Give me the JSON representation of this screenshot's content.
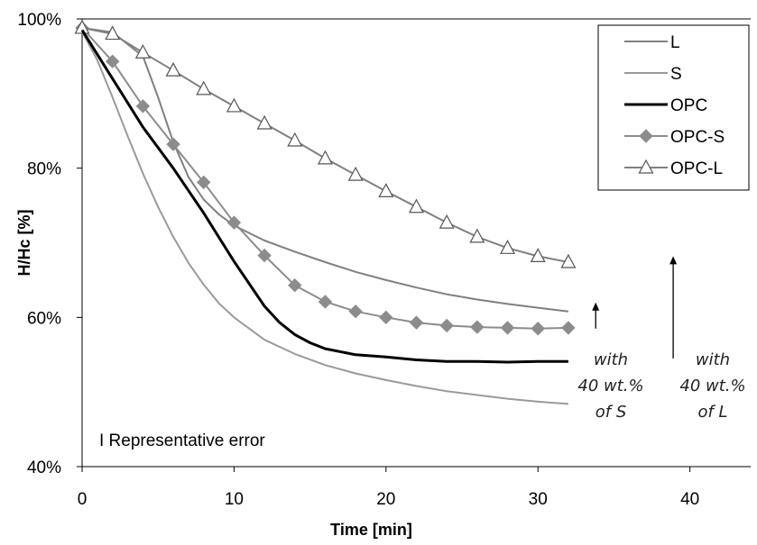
{
  "chart_data": {
    "type": "line",
    "title": "",
    "xlabel": "Time [min]",
    "ylabel": "H/Hc [%]",
    "xlim": [
      0,
      44
    ],
    "ylim": [
      40,
      100
    ],
    "xticks": [
      0,
      10,
      20,
      30,
      40
    ],
    "xtick_labels": [
      "0",
      "10",
      "20",
      "30",
      "40"
    ],
    "yticks": [
      40,
      60,
      80,
      100
    ],
    "ytick_labels": [
      "40%",
      "60%",
      "80%",
      "100%"
    ],
    "grid": false,
    "legend_position": "top-right",
    "series": [
      {
        "name": "L",
        "color": "#808080",
        "marker": "none",
        "x": [
          0,
          2,
          4,
          5,
          6,
          7,
          8,
          9,
          10,
          12,
          14,
          16,
          18,
          20,
          22,
          24,
          26,
          28,
          30,
          32
        ],
        "y": [
          98.8,
          98.2,
          95.0,
          89.5,
          83.5,
          78.8,
          75.8,
          73.8,
          72.3,
          70.3,
          68.8,
          67.4,
          66.1,
          65.0,
          64.0,
          63.1,
          62.4,
          61.8,
          61.3,
          60.8
        ]
      },
      {
        "name": "S",
        "color": "#9a9a9a",
        "marker": "none",
        "x": [
          0,
          1,
          2,
          3,
          4,
          5,
          6,
          7,
          8,
          9,
          10,
          12,
          14,
          16,
          18,
          20,
          22,
          24,
          26,
          28,
          30,
          32
        ],
        "y": [
          98.3,
          94.5,
          89.5,
          84.3,
          79.3,
          74.8,
          70.8,
          67.3,
          64.4,
          61.9,
          60.0,
          57.0,
          55.1,
          53.6,
          52.5,
          51.6,
          50.8,
          50.1,
          49.6,
          49.1,
          48.7,
          48.4
        ]
      },
      {
        "name": "OPC",
        "color": "#000000",
        "marker": "none",
        "x": [
          0,
          2,
          4,
          6,
          8,
          10,
          12,
          13,
          14,
          15,
          16,
          18,
          20,
          22,
          24,
          26,
          28,
          30,
          32
        ],
        "y": [
          98.5,
          92.0,
          85.5,
          80.0,
          74.0,
          67.5,
          61.5,
          59.3,
          57.7,
          56.6,
          55.8,
          55.0,
          54.7,
          54.3,
          54.1,
          54.1,
          54.0,
          54.1,
          54.1
        ]
      },
      {
        "name": "OPC-S",
        "color": "#8c8c8c",
        "marker": "diamond",
        "x": [
          0,
          2,
          4,
          6,
          8,
          10,
          12,
          14,
          16,
          18,
          20,
          22,
          24,
          26,
          28,
          30,
          32
        ],
        "y": [
          98.8,
          94.3,
          88.3,
          83.2,
          78.1,
          72.7,
          68.3,
          64.3,
          62.1,
          60.8,
          60.0,
          59.3,
          58.9,
          58.7,
          58.6,
          58.5,
          58.6
        ]
      },
      {
        "name": "OPC-L",
        "color": "#808080",
        "marker": "triangle",
        "x": [
          0,
          2,
          4,
          6,
          8,
          10,
          12,
          14,
          16,
          18,
          20,
          22,
          24,
          26,
          28,
          30,
          32
        ],
        "y": [
          98.8,
          98.0,
          95.5,
          93.1,
          90.6,
          88.3,
          86.0,
          83.7,
          81.3,
          79.1,
          76.9,
          74.8,
          72.7,
          70.8,
          69.3,
          68.2,
          67.4
        ]
      }
    ],
    "annotations": [
      {
        "text_lines": [
          "with",
          "40 wt.%",
          "of S"
        ],
        "arrow_x": 33.8,
        "arrow_from_y": 58.5,
        "arrow_to_y": 62.0
      },
      {
        "text_lines": [
          "with",
          "40 wt.%",
          "of L"
        ],
        "arrow_x": 38.9,
        "arrow_from_y": 54.5,
        "arrow_to_y": 68.2
      }
    ],
    "note": "I Representative error"
  }
}
